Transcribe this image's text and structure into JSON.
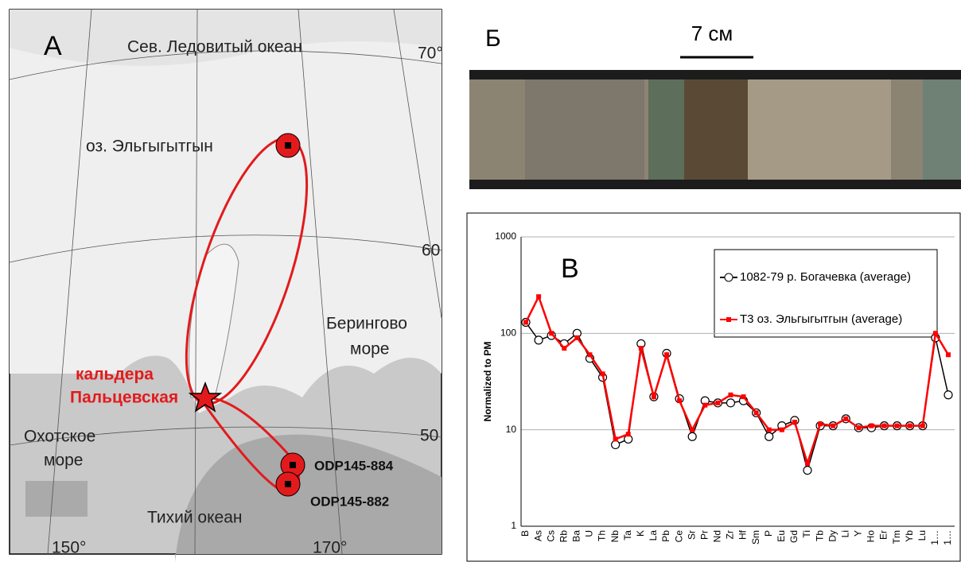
{
  "map": {
    "panel_label": "А",
    "labels": {
      "arctic": "Сев. Ледовитый океан",
      "lat70": "70°",
      "lake": "оз. Эльгыгытгын",
      "lat60": "60",
      "bering_1": "Берингово",
      "bering_2": "море",
      "caldera_1": "кальдера",
      "caldera_2": "Пальцевская",
      "okhotsk_1": "Охотское",
      "okhotsk_2": "море",
      "lat50": "50",
      "site884": "ODP145-884",
      "site882": "ODP145-882",
      "pacific": "Тихий океан",
      "lon150": "150°",
      "lon170": "170°"
    }
  },
  "photo": {
    "panel_label": "Б",
    "scale": "7 см"
  },
  "chart_data": {
    "type": "line",
    "panel_label": "В",
    "y_label": "Normalized to PM",
    "log_y": true,
    "grid": true,
    "legend": "upper right",
    "categories": [
      "B",
      "As",
      "Cs",
      "Rb",
      "Ba",
      "U",
      "Th",
      "Nb",
      "Ta",
      "K",
      "La",
      "Pb",
      "Ce",
      "Sr",
      "Pr",
      "Nd",
      "Zr",
      "Hf",
      "Sm",
      "P",
      "Eu",
      "Gd",
      "Ti",
      "Tb",
      "Dy",
      "Li",
      "Y",
      "Ho",
      "Er",
      "Tm",
      "Yb",
      "Lu",
      "1…",
      "1…"
    ],
    "series": [
      {
        "name": "1082-79 р. Богачевка (average)",
        "color": "#000000",
        "values": [
          130,
          85,
          95,
          78,
          100,
          55,
          35,
          7,
          8,
          78,
          22,
          62,
          21,
          8.5,
          20,
          19,
          19,
          20,
          15,
          8.5,
          11,
          12.5,
          3.8,
          11,
          11,
          13,
          10.5,
          10.5,
          11,
          11,
          11,
          11,
          90,
          23
        ]
      },
      {
        "name": "T3 оз. Эльгыгытгын (average)",
        "color": "#ff0000",
        "values": [
          130,
          240,
          100,
          70,
          90,
          60,
          38,
          8,
          9,
          70,
          22,
          60,
          20,
          10,
          18,
          19,
          23,
          22,
          15,
          10,
          10,
          12,
          4.5,
          11.5,
          11,
          13,
          10.5,
          11,
          11,
          11,
          11,
          11,
          100,
          60
        ]
      }
    ],
    "ylim": [
      1,
      1000
    ],
    "yticks": [
      1,
      10,
      100,
      1000
    ]
  }
}
